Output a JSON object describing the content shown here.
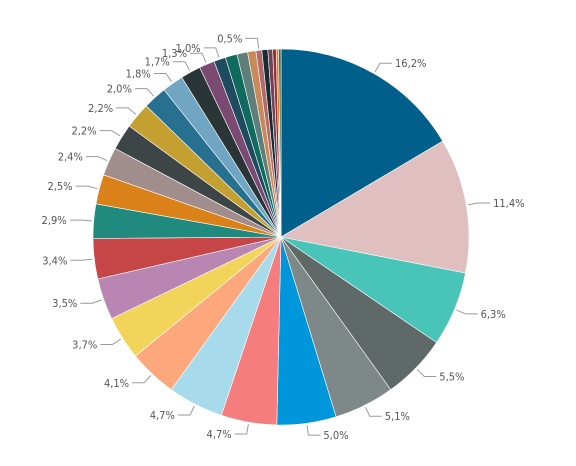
{
  "chart_data": {
    "type": "pie",
    "title": "",
    "start_angle_deg": 0,
    "direction": "clockwise",
    "legend": "none",
    "slices": [
      {
        "value": 16.2,
        "label": "16,2%",
        "color": "#005F8B",
        "labeled": true
      },
      {
        "value": 11.4,
        "label": "11,4%",
        "color": "#E0BFC1",
        "labeled": true
      },
      {
        "value": 6.3,
        "label": "6,3%",
        "color": "#48C4B9",
        "labeled": true
      },
      {
        "value": 5.5,
        "label": "5,5%",
        "color": "#5F6968",
        "labeled": true
      },
      {
        "value": 5.1,
        "label": "5,1%",
        "color": "#7F8888",
        "labeled": true
      },
      {
        "value": 5.0,
        "label": "5,0%",
        "color": "#0096DB",
        "labeled": true
      },
      {
        "value": 4.7,
        "label": "4,7%",
        "color": "#F67D7D",
        "labeled": true
      },
      {
        "value": 4.7,
        "label": "4,7%",
        "color": "#A7DBEC",
        "labeled": true
      },
      {
        "value": 4.1,
        "label": "4,1%",
        "color": "#FDA77C",
        "labeled": true
      },
      {
        "value": 3.7,
        "label": "3,7%",
        "color": "#F3D45A",
        "labeled": true
      },
      {
        "value": 3.5,
        "label": "3,5%",
        "color": "#B986B3",
        "labeled": true
      },
      {
        "value": 3.4,
        "label": "3,4%",
        "color": "#C64647",
        "labeled": true
      },
      {
        "value": 2.9,
        "label": "2,9%",
        "color": "#1F8A7D",
        "labeled": true
      },
      {
        "value": 2.5,
        "label": "2,5%",
        "color": "#DA8219",
        "labeled": true
      },
      {
        "value": 2.4,
        "label": "2,4%",
        "color": "#A28D8D",
        "labeled": true
      },
      {
        "value": 2.2,
        "label": "2,2%",
        "color": "#3D4547",
        "labeled": true
      },
      {
        "value": 2.2,
        "label": "2,2%",
        "color": "#C4A030",
        "labeled": true
      },
      {
        "value": 2.0,
        "label": "2,0%",
        "color": "#27708F",
        "labeled": true
      },
      {
        "value": 1.8,
        "label": "1,8%",
        "color": "#70A6C1",
        "labeled": true
      },
      {
        "value": 1.7,
        "label": "1,7%",
        "color": "#2A3537",
        "labeled": true
      },
      {
        "value": 1.3,
        "label": "1,3%",
        "color": "#7A4A73",
        "labeled": true
      },
      {
        "value": 1.0,
        "label": "1,0%",
        "color": "#1E4C5E",
        "labeled": true
      },
      {
        "value": 1.0,
        "label": "",
        "color": "#0E6B5D",
        "labeled": false
      },
      {
        "value": 0.9,
        "label": "",
        "color": "#5C7F79",
        "labeled": false
      },
      {
        "value": 0.7,
        "label": "",
        "color": "#C98A5A",
        "labeled": false
      },
      {
        "value": 0.5,
        "label": "0,5%",
        "color": "#B36A6A",
        "labeled": true
      },
      {
        "value": 0.5,
        "label": "",
        "color": "#1A2C33",
        "labeled": false
      },
      {
        "value": 0.4,
        "label": "",
        "color": "#6E4257",
        "labeled": false
      },
      {
        "value": 0.3,
        "label": "",
        "color": "#9A2F2F",
        "labeled": false
      },
      {
        "value": 0.2,
        "label": "",
        "color": "#E07A1F",
        "labeled": false
      },
      {
        "value": 0.2,
        "label": "",
        "color": "#3D6B4A",
        "labeled": false
      }
    ]
  }
}
